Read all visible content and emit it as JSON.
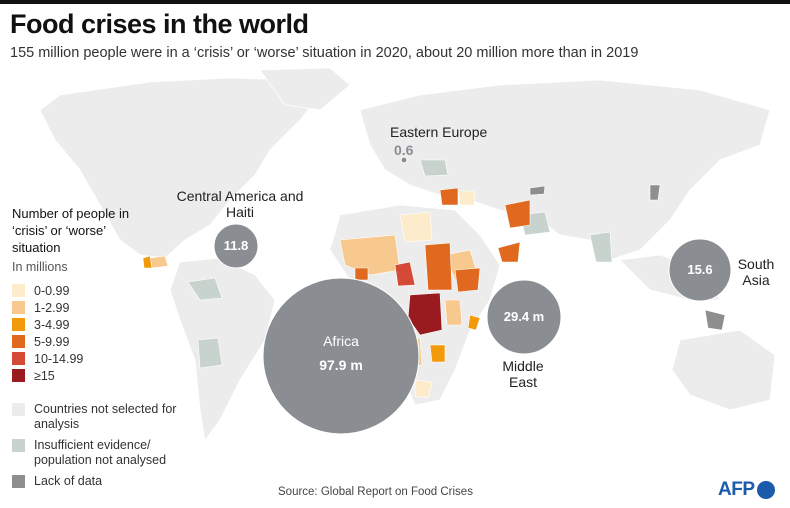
{
  "title": "Food crises in the world",
  "subtitle": "155 million people were in a ‘crisis’ or ‘worse’ situation in 2020, about 20 million more than in 2019",
  "legend": {
    "title": "Number of people in ‘crisis’ or ‘worse’ situation",
    "unit": "In millions",
    "classes": [
      {
        "label": "0-0.99",
        "color": "#fdeccb"
      },
      {
        "label": "1-2.99",
        "color": "#f8c98e"
      },
      {
        "label": "3-4.99",
        "color": "#f29a0c"
      },
      {
        "label": "5-9.99",
        "color": "#e0691f"
      },
      {
        "label": "10-14.99",
        "color": "#d54a36"
      },
      {
        "label": "≥15",
        "color": "#9a1b1f"
      }
    ],
    "other": [
      {
        "label": "Countries not selected for analysis",
        "color": "#ececec"
      },
      {
        "label": "Insufficient evidence/ population not analysed",
        "color": "#c9d3ce"
      },
      {
        "label": "Lack of data",
        "color": "#8e8e8e"
      }
    ]
  },
  "regions": [
    {
      "name": "Central America and Haiti",
      "value": "11.8"
    },
    {
      "name": "Eastern Europe",
      "value": "0.6"
    },
    {
      "name": "Africa",
      "value": "97.9 m"
    },
    {
      "name": "Middle East",
      "value": "29.4 m"
    },
    {
      "name": "South Asia",
      "value": "15.6"
    }
  ],
  "bubble_color": "#8a8e93",
  "source": "Source: Global Report on Food Crises",
  "logo": "AFP"
}
